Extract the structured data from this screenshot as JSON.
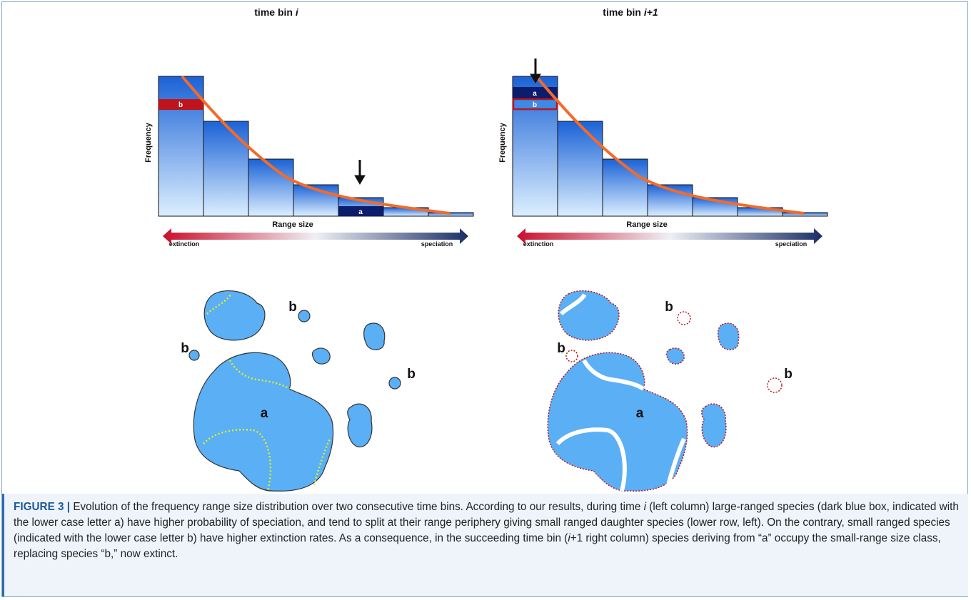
{
  "panels": [
    {
      "title": "time bin ",
      "title_italic": "i",
      "y_label": "Frequency",
      "x_label": "Range size",
      "left_label": "extinction",
      "right_label": "speciation",
      "box_a": "a",
      "box_b": "b"
    },
    {
      "title": "time bin ",
      "title_italic": "i+1",
      "y_label": "Frequency",
      "x_label": "Range size",
      "left_label": "extinction",
      "right_label": "speciation",
      "box_a": "a",
      "box_b": "b"
    }
  ],
  "maps": [
    {
      "a": "a",
      "b": [
        "b",
        "b",
        "b"
      ]
    },
    {
      "a": "a",
      "b": [
        "b",
        "b",
        "b"
      ]
    }
  ],
  "caption": {
    "label": "FIGURE 3 |",
    "parts": [
      " Evolution of the frequency range size distribution over two consecutive time bins. According to our results, during time ",
      "i",
      " (left column) large-ranged species (dark blue box, indicated with the lower case letter a) have higher probability of speciation, and tend to split at their range periphery giving small ranged daughter species (lower row, left). On the contrary, small ranged species (indicated with the lower case letter b) have higher extinction rates. As a consequence, in the succeeding time bin (",
      "i",
      "+1 right column) species deriving from “a” occupy the small-range size class, replacing species “b,” now extinct."
    ]
  }
}
